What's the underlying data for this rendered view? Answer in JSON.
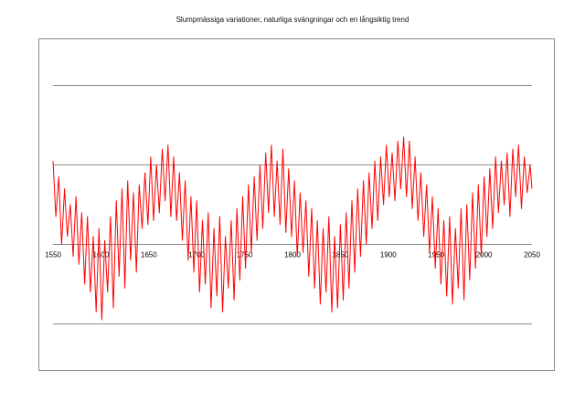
{
  "chart_data": {
    "type": "line",
    "title": "Slumpmässiga variationer, naturliga svängningar och en långsiktig trend",
    "xlabel": "",
    "ylabel": "",
    "x_ticks": [
      "1550",
      "1600",
      "1650",
      "1700",
      "1750",
      "1800",
      "1850",
      "1900",
      "1950",
      "2000",
      "2050"
    ],
    "xlim": [
      1550,
      2050
    ],
    "ylim": [
      -1.5,
      2.5
    ],
    "y_gridlines": [
      -1.0,
      0.0,
      1.0,
      2.0
    ],
    "y_tick_labels_shown": false,
    "grid": "horizontal",
    "legend": "none",
    "series": [
      {
        "color": "#ff0000",
        "points": [
          [
            1550,
            1.05
          ],
          [
            1553,
            0.35
          ],
          [
            1556,
            0.85
          ],
          [
            1559,
            0.0
          ],
          [
            1562,
            0.7
          ],
          [
            1565,
            0.1
          ],
          [
            1568,
            0.5
          ],
          [
            1571,
            -0.15
          ],
          [
            1574,
            0.6
          ],
          [
            1577,
            -0.25
          ],
          [
            1580,
            0.4
          ],
          [
            1583,
            -0.5
          ],
          [
            1586,
            0.35
          ],
          [
            1589,
            -0.6
          ],
          [
            1592,
            0.1
          ],
          [
            1595,
            -0.85
          ],
          [
            1598,
            0.2
          ],
          [
            1601,
            -0.95
          ],
          [
            1604,
            0.05
          ],
          [
            1607,
            -0.6
          ],
          [
            1610,
            0.35
          ],
          [
            1613,
            -0.8
          ],
          [
            1616,
            0.55
          ],
          [
            1619,
            -0.4
          ],
          [
            1622,
            0.7
          ],
          [
            1625,
            -0.55
          ],
          [
            1628,
            0.8
          ],
          [
            1631,
            -0.2
          ],
          [
            1634,
            0.65
          ],
          [
            1637,
            -0.35
          ],
          [
            1640,
            0.75
          ],
          [
            1643,
            0.2
          ],
          [
            1646,
            0.9
          ],
          [
            1649,
            0.25
          ],
          [
            1652,
            1.1
          ],
          [
            1655,
            0.3
          ],
          [
            1658,
            1.0
          ],
          [
            1661,
            0.4
          ],
          [
            1664,
            1.2
          ],
          [
            1667,
            0.55
          ],
          [
            1670,
            1.25
          ],
          [
            1673,
            0.35
          ],
          [
            1676,
            1.1
          ],
          [
            1679,
            0.3
          ],
          [
            1682,
            0.9
          ],
          [
            1685,
            0.05
          ],
          [
            1688,
            0.8
          ],
          [
            1691,
            -0.2
          ],
          [
            1694,
            0.6
          ],
          [
            1697,
            -0.35
          ],
          [
            1700,
            0.55
          ],
          [
            1703,
            -0.6
          ],
          [
            1706,
            0.3
          ],
          [
            1709,
            -0.5
          ],
          [
            1712,
            0.4
          ],
          [
            1715,
            -0.8
          ],
          [
            1718,
            0.2
          ],
          [
            1721,
            -0.65
          ],
          [
            1724,
            0.35
          ],
          [
            1727,
            -0.85
          ],
          [
            1730,
            0.1
          ],
          [
            1733,
            -0.55
          ],
          [
            1736,
            0.3
          ],
          [
            1739,
            -0.7
          ],
          [
            1742,
            0.45
          ],
          [
            1745,
            -0.45
          ],
          [
            1748,
            0.6
          ],
          [
            1751,
            -0.3
          ],
          [
            1754,
            0.75
          ],
          [
            1757,
            -0.1
          ],
          [
            1760,
            0.85
          ],
          [
            1763,
            0.05
          ],
          [
            1766,
            1.0
          ],
          [
            1769,
            0.2
          ],
          [
            1772,
            1.15
          ],
          [
            1775,
            0.4
          ],
          [
            1778,
            1.25
          ],
          [
            1781,
            0.35
          ],
          [
            1784,
            1.05
          ],
          [
            1787,
            0.25
          ],
          [
            1790,
            1.2
          ],
          [
            1793,
            0.15
          ],
          [
            1796,
            0.95
          ],
          [
            1799,
            0.1
          ],
          [
            1802,
            0.8
          ],
          [
            1805,
            -0.15
          ],
          [
            1808,
            0.65
          ],
          [
            1811,
            -0.1
          ],
          [
            1814,
            0.55
          ],
          [
            1817,
            -0.4
          ],
          [
            1820,
            0.45
          ],
          [
            1823,
            -0.55
          ],
          [
            1826,
            0.3
          ],
          [
            1829,
            -0.75
          ],
          [
            1832,
            0.2
          ],
          [
            1835,
            -0.6
          ],
          [
            1838,
            0.35
          ],
          [
            1841,
            -0.85
          ],
          [
            1844,
            0.1
          ],
          [
            1847,
            -0.8
          ],
          [
            1850,
            0.25
          ],
          [
            1853,
            -0.7
          ],
          [
            1856,
            0.4
          ],
          [
            1859,
            -0.55
          ],
          [
            1862,
            0.55
          ],
          [
            1865,
            -0.35
          ],
          [
            1868,
            0.7
          ],
          [
            1871,
            -0.15
          ],
          [
            1874,
            0.8
          ],
          [
            1877,
            0.0
          ],
          [
            1880,
            0.9
          ],
          [
            1883,
            0.2
          ],
          [
            1886,
            1.05
          ],
          [
            1889,
            0.3
          ],
          [
            1892,
            1.1
          ],
          [
            1895,
            0.5
          ],
          [
            1898,
            1.25
          ],
          [
            1901,
            0.6
          ],
          [
            1904,
            1.15
          ],
          [
            1907,
            0.55
          ],
          [
            1910,
            1.3
          ],
          [
            1913,
            0.7
          ],
          [
            1916,
            1.35
          ],
          [
            1919,
            0.6
          ],
          [
            1922,
            1.3
          ],
          [
            1925,
            0.45
          ],
          [
            1928,
            1.1
          ],
          [
            1931,
            0.3
          ],
          [
            1934,
            0.9
          ],
          [
            1937,
            0.1
          ],
          [
            1940,
            0.75
          ],
          [
            1943,
            -0.1
          ],
          [
            1946,
            0.6
          ],
          [
            1949,
            -0.3
          ],
          [
            1952,
            0.45
          ],
          [
            1955,
            -0.5
          ],
          [
            1958,
            0.3
          ],
          [
            1961,
            -0.65
          ],
          [
            1964,
            0.35
          ],
          [
            1967,
            -0.75
          ],
          [
            1970,
            0.2
          ],
          [
            1973,
            -0.55
          ],
          [
            1976,
            0.45
          ],
          [
            1979,
            -0.7
          ],
          [
            1982,
            0.5
          ],
          [
            1985,
            -0.45
          ],
          [
            1988,
            0.65
          ],
          [
            1991,
            -0.3
          ],
          [
            1994,
            0.75
          ],
          [
            1997,
            -0.15
          ],
          [
            2000,
            0.85
          ],
          [
            2003,
            0.1
          ],
          [
            2006,
            0.95
          ],
          [
            2009,
            0.2
          ],
          [
            2012,
            1.1
          ],
          [
            2015,
            0.4
          ],
          [
            2018,
            1.05
          ],
          [
            2021,
            0.5
          ],
          [
            2024,
            1.15
          ],
          [
            2027,
            0.35
          ],
          [
            2030,
            1.2
          ],
          [
            2033,
            0.6
          ],
          [
            2036,
            1.25
          ],
          [
            2039,
            0.45
          ],
          [
            2042,
            1.1
          ],
          [
            2045,
            0.65
          ],
          [
            2048,
            1.0
          ],
          [
            2050,
            0.7
          ]
        ]
      }
    ]
  }
}
